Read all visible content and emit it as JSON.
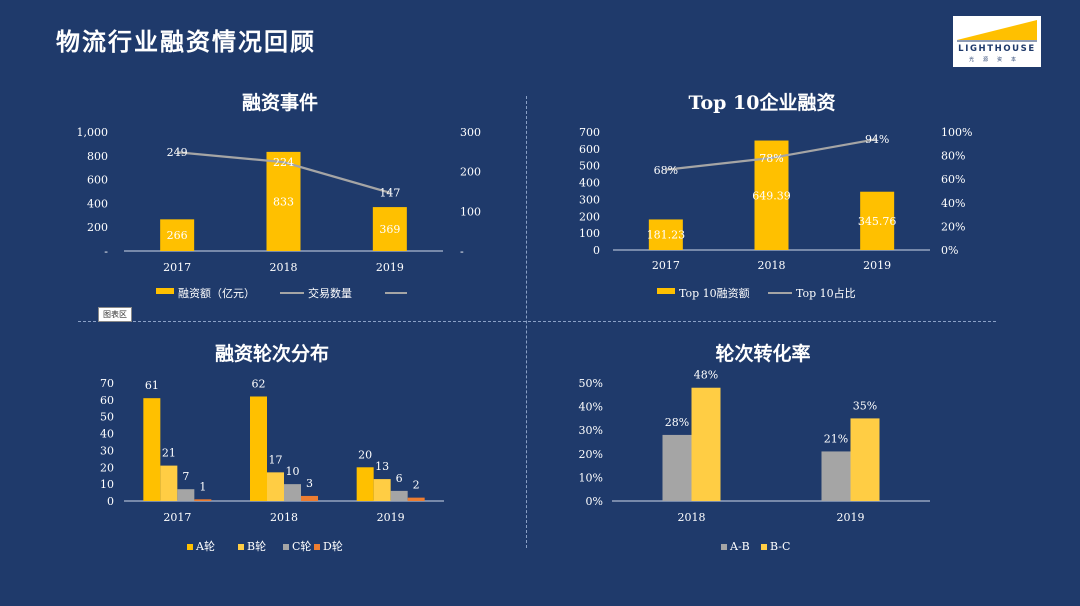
{
  "page": {
    "title": "物流行业融资情况回顾",
    "area_label": "图表区",
    "logo": {
      "word": "LIGHTHOUSE",
      "sub": "光源资本"
    }
  },
  "colors": {
    "background": "#1f3a6b",
    "yellow": "#ffc000",
    "yellow_light": "#ffcd44",
    "gray": "#a5a5a5",
    "orange": "#ed7d31",
    "line": "#a5a5a5"
  },
  "chart_data": [
    {
      "id": "financing-events",
      "type": "bar+line",
      "title": "融资事件",
      "categories": [
        "2017",
        "2018",
        "2019"
      ],
      "series": [
        {
          "name": "融资额（亿元）",
          "type": "bar",
          "axis": "left",
          "values": [
            266,
            833,
            369
          ],
          "labels": [
            "266",
            "833",
            "369"
          ]
        },
        {
          "name": "交易数量",
          "type": "line",
          "axis": "right",
          "values": [
            249,
            224,
            147
          ],
          "labels": [
            "249",
            "224",
            "147"
          ]
        }
      ],
      "legend_extra": true,
      "left_axis": {
        "ylim": [
          0,
          1000
        ],
        "ticks": [
          0,
          200,
          400,
          600,
          800,
          1000
        ],
        "tick_labels": [
          "-",
          "200",
          "400",
          "600",
          "800",
          "1,000"
        ]
      },
      "right_axis": {
        "ylim": [
          0,
          300
        ],
        "ticks": [
          0,
          100,
          200,
          300
        ],
        "tick_labels": [
          "-",
          "100",
          "200",
          "300"
        ]
      },
      "legend_position": "bottom"
    },
    {
      "id": "top10-financing",
      "type": "bar+line",
      "title": "Top 10企业融资",
      "categories": [
        "2017",
        "2018",
        "2019"
      ],
      "series": [
        {
          "name": "Top 10融资额",
          "type": "bar",
          "axis": "left",
          "values": [
            181.23,
            649.39,
            345.76
          ],
          "labels": [
            "181.23",
            "649.39",
            "345.76"
          ]
        },
        {
          "name": "Top 10占比",
          "type": "line",
          "axis": "right",
          "values": [
            68,
            78,
            94
          ],
          "labels": [
            "68%",
            "78%",
            "94%"
          ]
        }
      ],
      "legend_extra": false,
      "left_axis": {
        "ylim": [
          0,
          700
        ],
        "ticks": [
          0,
          100,
          200,
          300,
          400,
          500,
          600,
          700
        ],
        "tick_labels": [
          "0",
          "100",
          "200",
          "300",
          "400",
          "500",
          "600",
          "700"
        ]
      },
      "right_axis": {
        "ylim": [
          0,
          100
        ],
        "ticks": [
          0,
          20,
          40,
          60,
          80,
          100
        ],
        "tick_labels": [
          "0%",
          "20%",
          "40%",
          "60%",
          "80%",
          "100%"
        ]
      },
      "legend_position": "bottom"
    },
    {
      "id": "round-distribution",
      "type": "bar",
      "title": "融资轮次分布",
      "categories": [
        "2017",
        "2018",
        "2019"
      ],
      "series": [
        {
          "name": "A轮",
          "values": [
            61,
            62,
            20
          ]
        },
        {
          "name": "B轮",
          "values": [
            21,
            17,
            13
          ]
        },
        {
          "name": "C轮",
          "values": [
            7,
            10,
            6
          ]
        },
        {
          "name": "D轮",
          "values": [
            1,
            3,
            2
          ]
        }
      ],
      "ylim": [
        0,
        70
      ],
      "ticks": [
        0,
        10,
        20,
        30,
        40,
        50,
        60,
        70
      ],
      "legend_position": "bottom"
    },
    {
      "id": "round-conversion",
      "type": "bar",
      "title": "轮次转化率",
      "categories": [
        "2018",
        "2019"
      ],
      "series": [
        {
          "name": "A-B",
          "values": [
            28,
            21
          ],
          "labels": [
            "28%",
            "21%"
          ]
        },
        {
          "name": "B-C",
          "values": [
            48,
            35
          ],
          "labels": [
            "48%",
            "35%"
          ]
        }
      ],
      "ylim": [
        0,
        50
      ],
      "ticks": [
        0,
        10,
        20,
        30,
        40,
        50
      ],
      "tick_labels": [
        "0%",
        "10%",
        "20%",
        "30%",
        "40%",
        "50%"
      ],
      "legend_position": "bottom"
    }
  ]
}
